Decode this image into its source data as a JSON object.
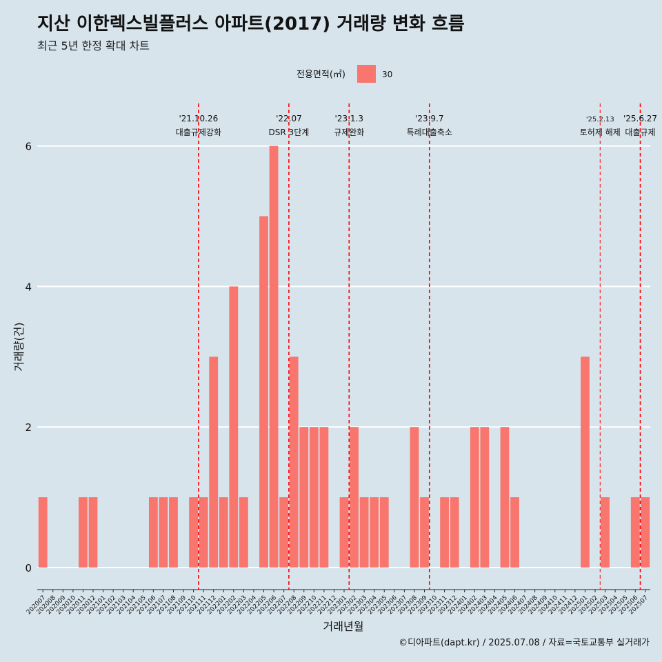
{
  "chart_data": {
    "type": "bar",
    "title": "지산 이한렉스빌플러스 아파트(2017) 거래량 변화 흐름",
    "subtitle": "최근 5년 한정 확대 차트",
    "xlabel": "거래년월",
    "ylabel": "거래량(건)",
    "caption": "©디아파트(dapt.kr) / 2025.07.08 / 자료=국토교통부 실거래가",
    "legend": {
      "title": "전용면적(㎡)",
      "position": "top",
      "entries": [
        {
          "label": "30",
          "color": "#f8766d"
        }
      ]
    },
    "ylim": [
      0,
      6.4
    ],
    "yticks": [
      0,
      2,
      4,
      6
    ],
    "grid": true,
    "categories": [
      "202007",
      "202008",
      "202009",
      "202010",
      "202011",
      "202012",
      "202101",
      "202102",
      "202103",
      "202104",
      "202105",
      "202106",
      "202107",
      "202108",
      "202109",
      "202110",
      "202111",
      "202112",
      "202201",
      "202202",
      "202203",
      "202204",
      "202205",
      "202206",
      "202207",
      "202208",
      "202209",
      "202210",
      "202211",
      "202212",
      "202301",
      "202302",
      "202303",
      "202304",
      "202305",
      "202306",
      "202307",
      "202308",
      "202309",
      "202310",
      "202311",
      "202312",
      "202401",
      "202402",
      "202403",
      "202404",
      "202405",
      "202406",
      "202407",
      "202408",
      "202409",
      "202410",
      "202411",
      "202412",
      "202501",
      "202502",
      "202503",
      "202504",
      "202505",
      "202506",
      "202507"
    ],
    "series": [
      {
        "name": "30",
        "color": "#f8766d",
        "values": [
          1,
          0,
          0,
          0,
          1,
          1,
          0,
          0,
          0,
          0,
          0,
          1,
          1,
          1,
          0,
          1,
          1,
          3,
          1,
          4,
          1,
          0,
          5,
          6,
          1,
          3,
          2,
          2,
          2,
          0,
          1,
          2,
          1,
          1,
          1,
          0,
          0,
          2,
          1,
          0,
          1,
          1,
          0,
          2,
          2,
          0,
          2,
          1,
          0,
          0,
          0,
          0,
          0,
          0,
          3,
          0,
          1,
          0,
          0,
          1,
          1
        ]
      }
    ],
    "annotations": [
      {
        "position": 15.5,
        "date": "'21.10.26",
        "label": "대출규제강화",
        "style": "thick"
      },
      {
        "position": 24.5,
        "date": "'22.07",
        "label": "DSR 3단계",
        "style": "thick"
      },
      {
        "position": 30.5,
        "date": "'23.1.3",
        "label": "규제완화",
        "style": "thick"
      },
      {
        "position": 38.5,
        "date": "'23.9.7",
        "label": "특례대출축소",
        "style": "thick"
      },
      {
        "position": 55.5,
        "date": "'25.2.13",
        "label": "토허제 해제",
        "style": "thin"
      },
      {
        "position": 59.5,
        "date": "'25.6.27",
        "label": "대출규제",
        "style": "thick"
      }
    ]
  }
}
